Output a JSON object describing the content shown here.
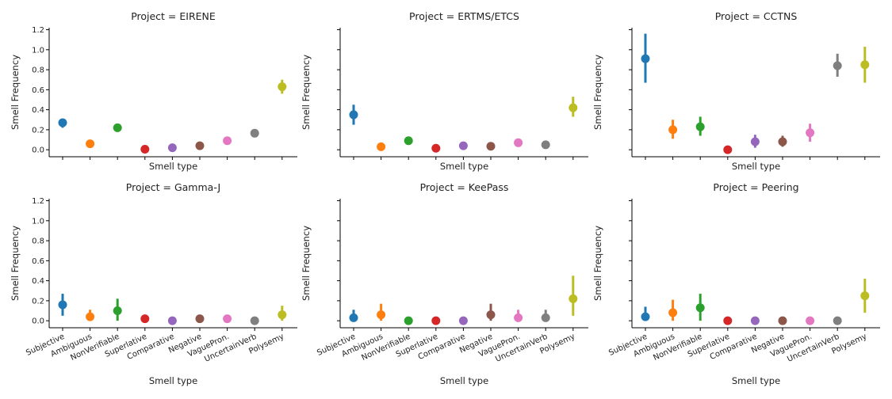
{
  "chart_data": {
    "type": "scatter",
    "plot_style": "pointplot-with-error-bars",
    "x_tick_labels": [
      "Subjective",
      "Ambiguous",
      "NonVerifiable",
      "Superlative",
      "Comparative",
      "Negative",
      "VaguePron.",
      "UncertainVerb",
      "Polysemy"
    ],
    "xlabel": "Smell type",
    "ylabel": "Smell Frequency",
    "y_ticks": [
      "0.0",
      "0.2",
      "0.4",
      "0.6",
      "0.8",
      "1.0",
      "1.2"
    ],
    "ylim": [
      -0.07,
      1.22
    ],
    "colors": [
      "#1f77b4",
      "#ff7f0e",
      "#2ca02c",
      "#d62728",
      "#9467bd",
      "#8c564b",
      "#e377c2",
      "#7f7f7f",
      "#bcbd22"
    ],
    "panels": [
      {
        "title": "Project = EIRENE",
        "values": [
          0.27,
          0.06,
          0.22,
          0.005,
          0.02,
          0.04,
          0.09,
          0.165,
          0.63
        ],
        "ci_low": [
          0.22,
          0.05,
          0.19,
          0.0,
          0.01,
          0.03,
          0.075,
          0.155,
          0.56
        ],
        "ci_high": [
          0.31,
          0.07,
          0.25,
          0.01,
          0.03,
          0.05,
          0.105,
          0.175,
          0.7
        ]
      },
      {
        "title": "Project = ERTMS/ETCS",
        "values": [
          0.35,
          0.03,
          0.09,
          0.015,
          0.04,
          0.035,
          0.07,
          0.05,
          0.42
        ],
        "ci_low": [
          0.25,
          0.02,
          0.05,
          0.005,
          0.03,
          0.025,
          0.04,
          0.03,
          0.33
        ],
        "ci_high": [
          0.45,
          0.045,
          0.13,
          0.025,
          0.05,
          0.045,
          0.1,
          0.07,
          0.53
        ]
      },
      {
        "title": "Project = CCTNS",
        "values": [
          0.91,
          0.2,
          0.23,
          0.0,
          0.08,
          0.08,
          0.17,
          0.84,
          0.85
        ],
        "ci_low": [
          0.67,
          0.11,
          0.14,
          0.0,
          0.02,
          0.03,
          0.08,
          0.73,
          0.67
        ],
        "ci_high": [
          1.16,
          0.3,
          0.33,
          0.01,
          0.15,
          0.14,
          0.26,
          0.96,
          1.03
        ]
      },
      {
        "title": "Project = Gamma-J",
        "values": [
          0.16,
          0.04,
          0.1,
          0.02,
          0.0,
          0.02,
          0.02,
          0.0,
          0.06
        ],
        "ci_low": [
          0.05,
          0.0,
          0.0,
          0.0,
          0.0,
          0.0,
          0.0,
          0.0,
          0.0
        ],
        "ci_high": [
          0.27,
          0.11,
          0.22,
          0.05,
          0.01,
          0.05,
          0.05,
          0.01,
          0.15
        ]
      },
      {
        "title": "Project = KeePass",
        "values": [
          0.03,
          0.06,
          0.0,
          0.0,
          0.0,
          0.06,
          0.03,
          0.03,
          0.22
        ],
        "ci_low": [
          0.0,
          0.0,
          0.0,
          0.0,
          0.0,
          0.0,
          0.0,
          0.0,
          0.05
        ],
        "ci_high": [
          0.11,
          0.17,
          0.01,
          0.01,
          0.01,
          0.17,
          0.11,
          0.11,
          0.45
        ]
      },
      {
        "title": "Project = Peering",
        "values": [
          0.04,
          0.08,
          0.13,
          0.0,
          0.0,
          0.0,
          0.0,
          0.0,
          0.25
        ],
        "ci_low": [
          0.0,
          0.0,
          0.0,
          0.0,
          0.0,
          0.0,
          0.0,
          0.0,
          0.08
        ],
        "ci_high": [
          0.14,
          0.21,
          0.27,
          0.01,
          0.01,
          0.01,
          0.01,
          0.01,
          0.42
        ]
      }
    ]
  }
}
